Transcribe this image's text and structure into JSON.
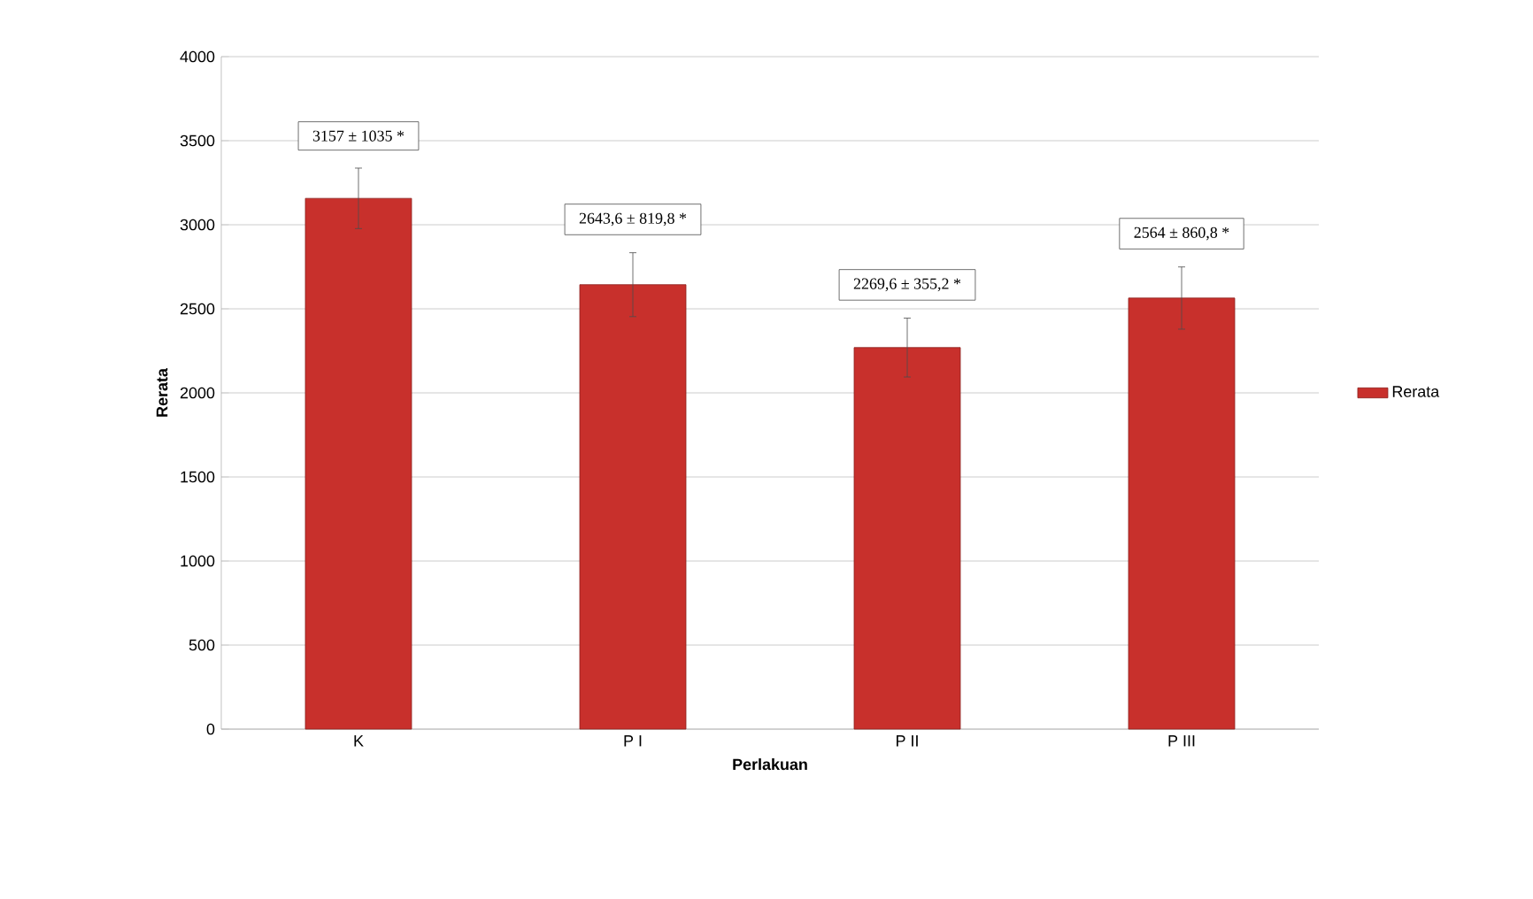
{
  "chart_data": {
    "type": "bar",
    "xlabel": "Perlakuan",
    "ylabel": "Rerata",
    "categories": [
      "K",
      "P I",
      "P II",
      "P III"
    ],
    "series": [
      {
        "name": "Rerata",
        "color": "#c8302c",
        "values": [
          3157,
          2643.6,
          2269.6,
          2564
        ],
        "errors": [
          180,
          190,
          175,
          185
        ]
      }
    ],
    "ylim": [
      0,
      4000
    ],
    "yticks": [
      0,
      500,
      1000,
      1500,
      2000,
      2500,
      3000,
      3500,
      4000
    ],
    "grid": "y",
    "legend": "right",
    "annotations": [
      "3157 ± 1035 *",
      "2643,6 ± 819,8 *",
      "2269,6 ± 355,2 *",
      "2564 ± 860,8 *"
    ]
  }
}
